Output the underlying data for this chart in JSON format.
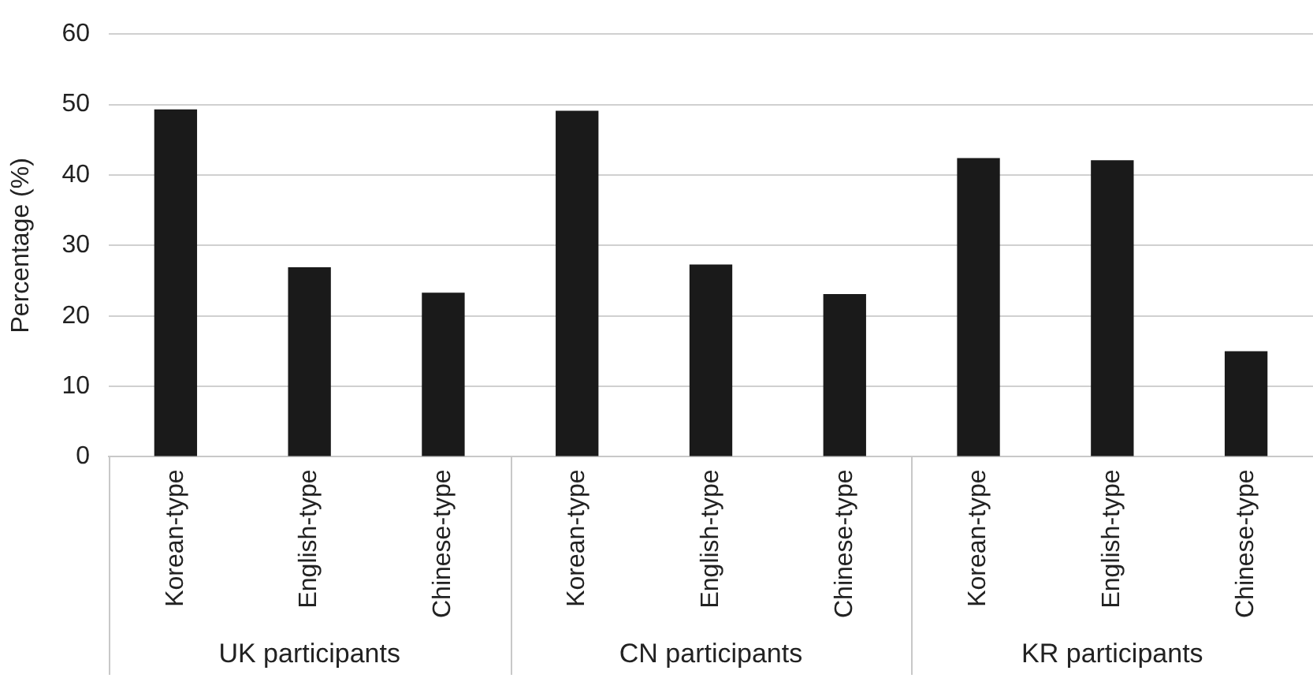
{
  "chart_data": {
    "type": "bar",
    "ylabel": "Percentage (%)",
    "categories": [
      "Korean-type",
      "English-type",
      "Chinese-type",
      "Korean-type",
      "English-type",
      "Chinese-type",
      "Korean-type",
      "English-type",
      "Chinese-type"
    ],
    "values": [
      49.3,
      26.9,
      23.3,
      49.1,
      27.3,
      23.1,
      42.4,
      42.1,
      15.0
    ],
    "color": "#1a1a1a",
    "ylim": [
      0,
      60
    ],
    "yticks": [
      0,
      10,
      20,
      30,
      40,
      50,
      60
    ],
    "grid": "y",
    "annotations": [
      "UK participants",
      "CN participants",
      "KR participants"
    ]
  }
}
